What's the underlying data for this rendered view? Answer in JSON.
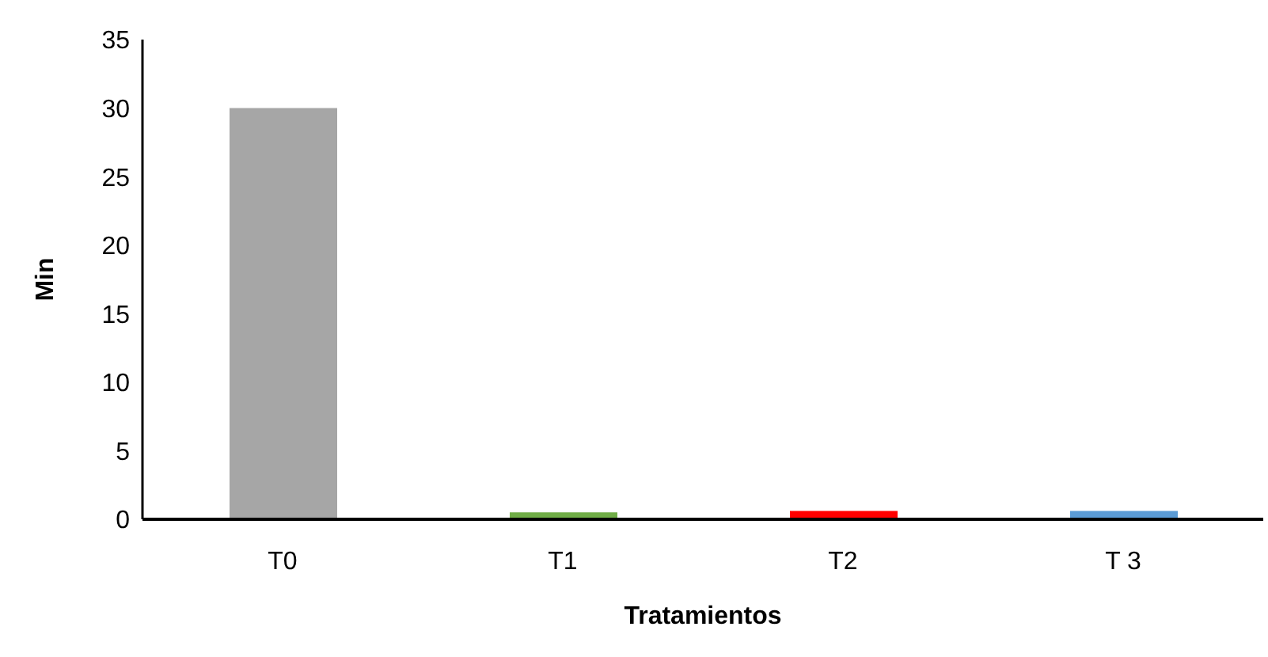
{
  "chart_data": {
    "type": "bar",
    "xlabel": "Tratamientos",
    "ylabel": "Min",
    "categories": [
      "T0",
      "T1",
      "T2",
      "T 3"
    ],
    "values": [
      30,
      0.5,
      0.6,
      0.6
    ],
    "colors": [
      "#a6a6a6",
      "#70ad47",
      "#ff0000",
      "#5b9bd5"
    ],
    "ylim": [
      0,
      35
    ],
    "yticks": [
      0,
      5,
      10,
      15,
      20,
      25,
      30,
      35
    ],
    "grid": false
  }
}
